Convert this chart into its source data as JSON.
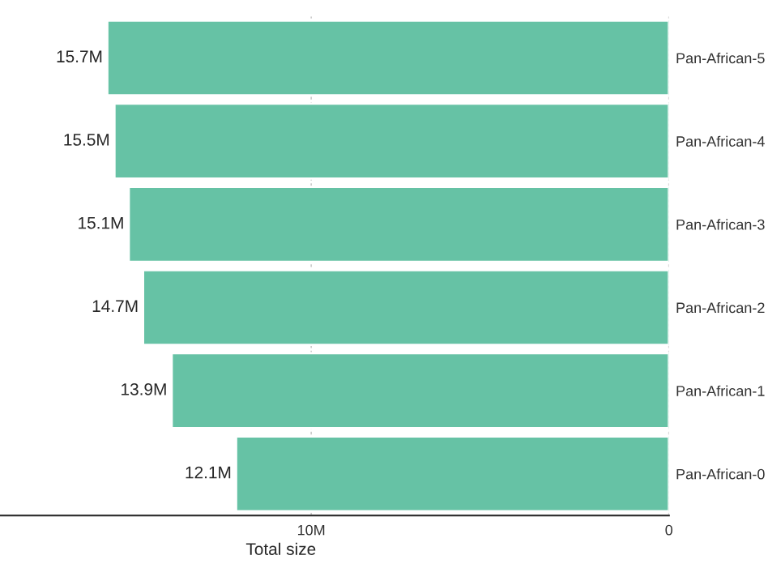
{
  "chart_data": {
    "type": "bar",
    "orientation": "horizontal",
    "xlabel": "Total size",
    "categories": [
      "Pan-African-5",
      "Pan-African-4",
      "Pan-African-3",
      "Pan-African-2",
      "Pan-African-1",
      "Pan-African-0"
    ],
    "values": [
      15.7,
      15.5,
      15.1,
      14.7,
      13.9,
      12.1
    ],
    "value_labels": [
      "15.7M",
      "15.5M",
      "15.1M",
      "14.7M",
      "13.9M",
      "12.1M"
    ],
    "color": "#66c2a5",
    "xlim": [
      18.7,
      0
    ],
    "xticks": [
      {
        "value": 10,
        "label": "10M"
      },
      0
    ],
    "grid": "x"
  }
}
